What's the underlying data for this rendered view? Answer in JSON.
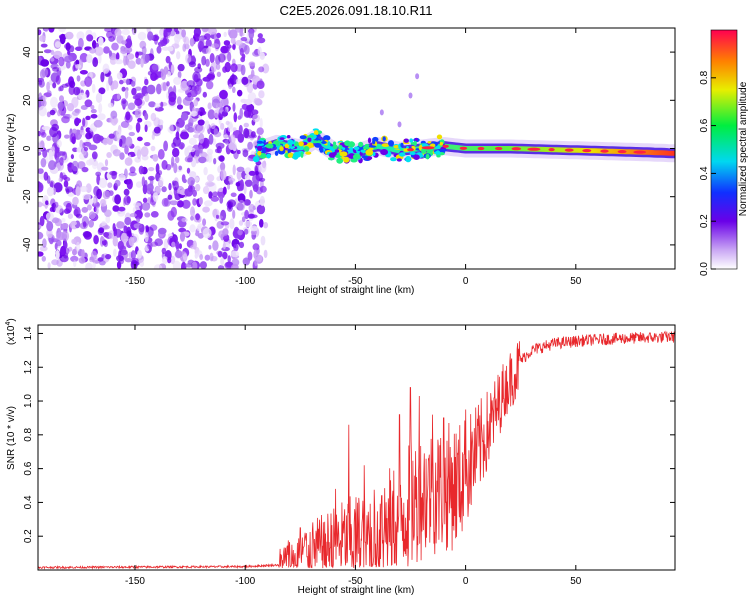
{
  "title": "C2E5.2026.091.18.10.R11",
  "chart_data": [
    {
      "type": "heatmap",
      "title": "C2E5.2026.091.18.10.R11",
      "xlabel": "Height of straight line (km)",
      "ylabel": "Frequency (Hz)",
      "xlim": [
        -194,
        95
      ],
      "ylim": [
        -50,
        50
      ],
      "xticks": [
        -150,
        -100,
        -50,
        0,
        50
      ],
      "xtick_labels": [
        "-150",
        "-100",
        "-50",
        "0",
        "50"
      ],
      "yticks": [
        -40,
        -20,
        0,
        20,
        40
      ],
      "ytick_labels": [
        "-40",
        "-20",
        "0",
        "20",
        "40"
      ],
      "noise_region_x": [
        -194,
        -97
      ],
      "signal_track": {
        "x": [
          -95,
          -85,
          -75,
          -68,
          -60,
          -50,
          -40,
          -30,
          -20,
          -10,
          0,
          10,
          20,
          40,
          60,
          80,
          95
        ],
        "y": [
          -1,
          2,
          0,
          4,
          -1,
          -2,
          1,
          -1,
          0,
          1,
          0,
          0,
          0,
          -0.5,
          -1,
          -1.5,
          -2
        ]
      },
      "colorbar": {
        "label": "Normalized spectral amplitude",
        "range": [
          0.0,
          1.0
        ],
        "ticks": [
          0.0,
          0.2,
          0.4,
          0.6,
          0.8
        ],
        "tick_labels": [
          "0.0",
          "0.2",
          "0.4",
          "0.6",
          "0.8"
        ]
      }
    },
    {
      "type": "line",
      "xlabel": "Height of straight line (km)",
      "ylabel": "SNR (10 * v/v)",
      "scale_label": "(x10",
      "scale_exponent": "4",
      "scale_suffix": ")",
      "xlim": [
        -194,
        95
      ],
      "ylim": [
        0,
        1.45
      ],
      "xticks": [
        -150,
        -100,
        -50,
        0,
        50
      ],
      "xtick_labels": [
        "-150",
        "-100",
        "-50",
        "0",
        "50"
      ],
      "yticks": [
        0.2,
        0.4,
        0.6,
        0.8,
        1.0,
        1.2,
        1.4
      ],
      "ytick_labels": [
        "0.2",
        "0.4",
        "0.6",
        "0.8",
        "1.0",
        "1.2",
        "1.4"
      ],
      "series": [
        {
          "name": "SNR",
          "color": "#e8282c",
          "baseline": {
            "x": [
              -194,
              -100,
              -85,
              -80,
              -75,
              -65,
              -55,
              -45,
              -38,
              -30,
              -25,
              -18,
              -10,
              -3,
              5,
              12,
              18,
              25,
              30,
              40,
              55,
              70,
              95
            ],
            "y": [
              0.015,
              0.02,
              0.03,
              0.08,
              0.12,
              0.15,
              0.2,
              0.22,
              0.28,
              0.35,
              0.42,
              0.5,
              0.52,
              0.55,
              0.72,
              0.9,
              1.1,
              1.24,
              1.3,
              1.34,
              1.36,
              1.37,
              1.38
            ]
          },
          "spikes": [
            {
              "x": -75,
              "y": 0.25
            },
            {
              "x": -59,
              "y": 0.48
            },
            {
              "x": -53,
              "y": 0.86
            },
            {
              "x": -46,
              "y": 0.62
            },
            {
              "x": -38,
              "y": 0.44
            },
            {
              "x": -30,
              "y": 0.92
            },
            {
              "x": -25,
              "y": 1.08
            },
            {
              "x": -21,
              "y": 1.03
            },
            {
              "x": -15,
              "y": 0.92
            },
            {
              "x": -10,
              "y": 0.9
            },
            {
              "x": 0,
              "y": 0.95
            },
            {
              "x": 18,
              "y": 1.18
            }
          ]
        }
      ]
    }
  ]
}
